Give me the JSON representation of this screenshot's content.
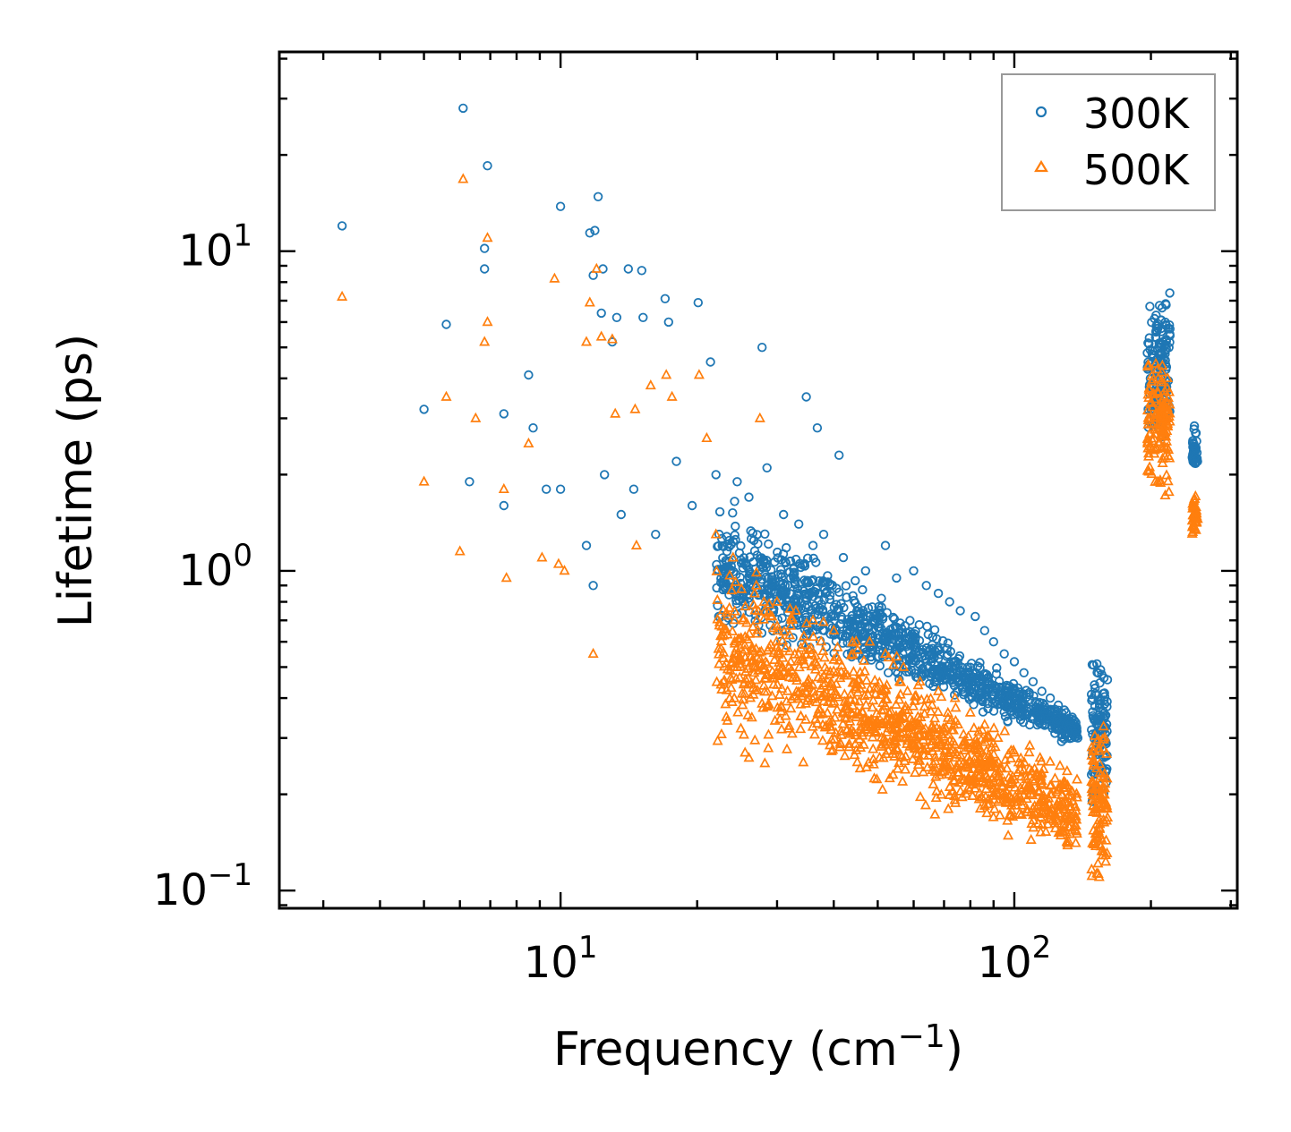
{
  "chart_data": {
    "type": "scatter",
    "xscale": "log",
    "yscale": "log",
    "xlim": [
      2.4,
      310
    ],
    "ylim": [
      0.088,
      42
    ],
    "xlabel": "Frequency (cm",
    "xlabel_sup": "−1",
    "xlabel_end": ")",
    "ylabel": "Lifetime (ps)",
    "x_ticks": [
      {
        "base": "10",
        "exp": "1",
        "value": 10
      },
      {
        "base": "10",
        "exp": "2",
        "value": 100
      }
    ],
    "y_ticks": [
      {
        "base": "10",
        "exp": "−1",
        "value": 0.1
      },
      {
        "base": "10",
        "exp": "0",
        "value": 1
      },
      {
        "base": "10",
        "exp": "1",
        "value": 10
      }
    ],
    "legend_position": "top-right",
    "series": [
      {
        "name": "300K",
        "marker": "circle",
        "color": "#1f77b4",
        "x": [
          3.3,
          5.0,
          5.6,
          6.1,
          6.3,
          6.8,
          6.9,
          6.8,
          7.5,
          8.5,
          8.7,
          9.3,
          10.0,
          10.0,
          11.6,
          11.8,
          11.9,
          12.1,
          12.3,
          12.4,
          13.0,
          13.3,
          14.1,
          15.1,
          15.2,
          17.0,
          17.3,
          20.1,
          21.4,
          27.8,
          34.8,
          36.8,
          41.1,
          7.5,
          11.4,
          11.8,
          12.5,
          13.6,
          14.5,
          16.2,
          18.0,
          19.5,
          22.0,
          24.5,
          26.0,
          28.5,
          31.0,
          33.5,
          36.0,
          38.0,
          42.0,
          47.0,
          52.0,
          55.0,
          60.0,
          64.0,
          68.0,
          72.0,
          76.0,
          82.0,
          86.0,
          90.0,
          95.0,
          100.0,
          105.0,
          110.0,
          115.0,
          120.0,
          125.0,
          130.0,
          132.0,
          134.0,
          136.0,
          138.0
        ],
        "y": [
          12.0,
          3.2,
          5.9,
          28.0,
          1.9,
          8.8,
          18.5,
          10.2,
          3.1,
          4.1,
          2.8,
          1.8,
          13.8,
          1.8,
          11.4,
          8.4,
          11.6,
          14.8,
          6.4,
          8.8,
          5.2,
          6.2,
          8.8,
          8.7,
          6.2,
          7.1,
          6.0,
          6.9,
          4.5,
          5.0,
          3.5,
          2.8,
          2.3,
          1.6,
          1.2,
          0.9,
          2.0,
          1.5,
          1.8,
          1.3,
          2.2,
          1.6,
          2.0,
          1.9,
          1.7,
          2.1,
          1.5,
          1.4,
          1.2,
          1.3,
          1.1,
          1.0,
          1.2,
          0.95,
          1.0,
          0.9,
          0.85,
          0.8,
          0.75,
          0.72,
          0.65,
          0.6,
          0.55,
          0.52,
          0.48,
          0.45,
          0.42,
          0.4,
          0.38,
          0.36,
          0.34,
          0.32,
          0.31,
          0.3
        ]
      },
      {
        "name": "500K",
        "marker": "triangle",
        "color": "#ff7f0e",
        "x": [
          3.3,
          5.0,
          5.6,
          6.0,
          6.1,
          6.5,
          6.8,
          6.9,
          6.9,
          7.5,
          7.6,
          8.5,
          9.1,
          9.7,
          9.9,
          10.2,
          11.4,
          11.6,
          11.8,
          12.0,
          12.3,
          13.0,
          13.2,
          14.6,
          14.7,
          15.8,
          17.1,
          17.6,
          20.2,
          21.0,
          25.5,
          26.0,
          27.5,
          28.2,
          22.0,
          24.0,
          27.0,
          30.0,
          33.0,
          36.0,
          40.0,
          44.0,
          48.0,
          52.0,
          57.0,
          62.0,
          68.0,
          74.0,
          80.0,
          86.0,
          92.0,
          100.0,
          108.0,
          115.0,
          120.0,
          125.0,
          130.0,
          133.0,
          136.0
        ],
        "y": [
          7.2,
          1.9,
          3.5,
          1.15,
          16.8,
          3.0,
          5.2,
          11.0,
          6.0,
          1.8,
          0.95,
          2.5,
          1.1,
          8.2,
          1.05,
          1.0,
          5.2,
          6.9,
          0.55,
          8.8,
          5.4,
          5.3,
          3.1,
          3.2,
          1.2,
          3.8,
          4.1,
          3.5,
          4.1,
          2.6,
          0.27,
          0.26,
          3.0,
          0.25,
          1.3,
          1.1,
          0.9,
          0.8,
          0.75,
          0.7,
          0.65,
          0.6,
          0.6,
          0.55,
          0.5,
          0.45,
          0.42,
          0.4,
          0.36,
          0.33,
          0.3,
          0.27,
          0.24,
          0.22,
          0.2,
          0.19,
          0.18,
          0.17,
          0.16
        ]
      }
    ],
    "clusters": [
      {
        "series": "300K",
        "x_center": 208.0,
        "x_spread": 0.025,
        "y_min": 2.6,
        "y_max": 7.8,
        "count": 140
      },
      {
        "series": "500K",
        "x_center": 208.0,
        "x_spread": 0.025,
        "y_min": 1.7,
        "y_max": 4.9,
        "count": 140
      },
      {
        "series": "300K",
        "x_center": 250.0,
        "x_spread": 0.006,
        "y_min": 2.0,
        "y_max": 2.9,
        "count": 40
      },
      {
        "series": "500K",
        "x_center": 250.0,
        "x_spread": 0.006,
        "y_min": 1.25,
        "y_max": 1.75,
        "count": 40
      },
      {
        "series": "300K",
        "x_center": 154.0,
        "x_spread": 0.018,
        "y_min": 0.18,
        "y_max": 0.58,
        "count": 110
      },
      {
        "series": "500K",
        "x_center": 154.0,
        "x_spread": 0.018,
        "y_min": 0.1,
        "y_max": 0.34,
        "count": 110
      },
      {
        "series": "300K",
        "x_center": 45.0,
        "x_spread": 0.45,
        "y_min": 0.28,
        "y_max": 1.85,
        "count": 1100,
        "trend": "decreasing"
      },
      {
        "series": "500K",
        "x_center": 45.0,
        "x_spread": 0.45,
        "y_min": 0.12,
        "y_max": 1.3,
        "count": 1100,
        "trend": "decreasing"
      }
    ]
  }
}
